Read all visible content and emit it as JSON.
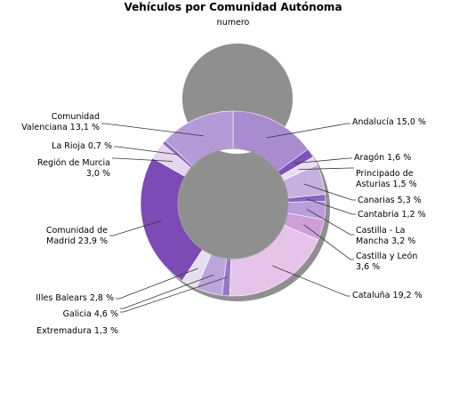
{
  "chart_data": {
    "type": "pie",
    "title": "Vehículos por Comunidad Autónoma",
    "subtitle": "numero",
    "slices": [
      {
        "name": "Andalucía",
        "value": 15.0,
        "label": [
          "Andalucía 15,0 %"
        ],
        "color": "#a98bd0"
      },
      {
        "name": "Aragón",
        "value": 1.6,
        "label": [
          "Aragón 1,6 %"
        ],
        "color": "#7b52b8"
      },
      {
        "name": "Principado de Asturias",
        "value": 1.5,
        "label": [
          "Principado de",
          "Asturias 1,5 %"
        ],
        "color": "#e9ddf2"
      },
      {
        "name": "Canarias",
        "value": 5.3,
        "label": [
          "Canarias 5,3 %"
        ],
        "color": "#c5b1e0"
      },
      {
        "name": "Cantabria",
        "value": 1.2,
        "label": [
          "Cantabria 1,2 %"
        ],
        "color": "#8b63c1"
      },
      {
        "name": "Castilla - La Mancha",
        "value": 3.2,
        "label": [
          "Castilla - La",
          "Mancha 3,2 %"
        ],
        "color": "#b89fdb"
      },
      {
        "name": "Castilla y León",
        "value": 3.6,
        "label": [
          "Castilla y León",
          "3,6 %"
        ],
        "color": "#cf9fd8"
      },
      {
        "name": "Cataluña",
        "value": 19.2,
        "label": [
          "Cataluña 19,2 %"
        ],
        "color": "#e6c3e8"
      },
      {
        "name": "Extremadura",
        "value": 1.3,
        "label": [
          "Extremadura 1,3 %"
        ],
        "color": "#9678c8"
      },
      {
        "name": "Galicia",
        "value": 4.6,
        "label": [
          "Galicia 4,6 %"
        ],
        "color": "#bba5db"
      },
      {
        "name": "Illes Balears",
        "value": 2.8,
        "label": [
          "Illes Balears 2,8 %"
        ],
        "color": "#e7dff1"
      },
      {
        "name": "Comunidad de Madrid",
        "value": 23.9,
        "label": [
          "Comunidad de",
          "Madrid 23,9 %"
        ],
        "color": "#7d4bb5"
      },
      {
        "name": "Región de Murcia",
        "value": 3.0,
        "label": [
          "Región de Murcia",
          "3,0 %"
        ],
        "color": "#e3d7ef"
      },
      {
        "name": "La Rioja",
        "value": 0.7,
        "label": [
          "La Rioja 0,7 %"
        ],
        "color": "#8e6cc2"
      },
      {
        "name": "Comunidad Valenciana",
        "value": 13.1,
        "label": [
          "Comunidad",
          "Valenciana 13,1 %"
        ],
        "color": "#b49bd8"
      }
    ]
  }
}
